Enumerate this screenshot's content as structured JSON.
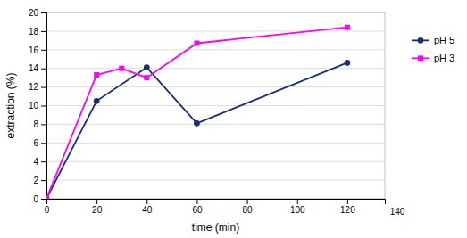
{
  "chart_data": {
    "type": "line",
    "xlabel": "time (min)",
    "ylabel": "extraction (%)",
    "series": [
      {
        "name": "pH 5",
        "color": "#1A2F7A",
        "marker": "circle",
        "x": [
          0,
          20,
          40,
          60,
          120
        ],
        "values": [
          0,
          10.5,
          14.1,
          8.1,
          14.6
        ]
      },
      {
        "name": "pH 3",
        "color": "#FF00FF",
        "marker": "square",
        "x": [
          0,
          20,
          30,
          40,
          60,
          120
        ],
        "values": [
          0,
          13.3,
          14.0,
          13.0,
          16.7,
          18.4
        ]
      }
    ],
    "xlim": [
      0,
      135
    ],
    "xticks": [
      0,
      20,
      40,
      60,
      80,
      100,
      120
    ],
    "ylim": [
      0,
      20
    ],
    "yticks": [
      0,
      2,
      4,
      6,
      8,
      10,
      12,
      14,
      16,
      18,
      20
    ],
    "annotations": [
      {
        "text": "140"
      }
    ],
    "grid": "y",
    "legend": "right"
  }
}
